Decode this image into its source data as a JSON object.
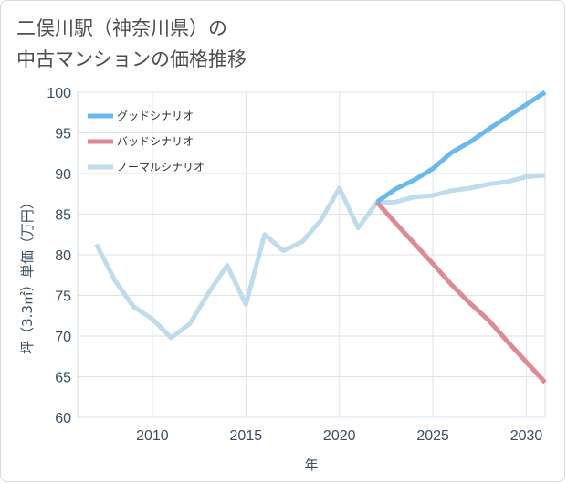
{
  "title_lines": [
    "二俣川駅（神奈川県）の",
    "中古マンションの価格推移"
  ],
  "chart_data": {
    "type": "line",
    "title": "二俣川駅（神奈川県）の中古マンションの価格推移",
    "xlabel": "年",
    "ylabel": "坪（3.3㎡）単価（万円）",
    "xlim": [
      2006,
      2031
    ],
    "ylim": [
      60,
      100
    ],
    "x_ticks": [
      2010,
      2015,
      2020,
      2025,
      2030
    ],
    "y_ticks": [
      60,
      65,
      70,
      75,
      80,
      85,
      90,
      95,
      100
    ],
    "grid": true,
    "legend_position": "top-left",
    "series": [
      {
        "name": "グッドシナリオ",
        "color": "#6bb8ec",
        "x": [
          2022,
          2023,
          2024,
          2025,
          2026,
          2027,
          2028,
          2029,
          2030,
          2031
        ],
        "y": [
          86.5,
          88.1,
          89.2,
          90.6,
          92.6,
          93.9,
          95.5,
          97.0,
          98.5,
          100.0
        ]
      },
      {
        "name": "バッドシナリオ",
        "color": "#de8a96",
        "x": [
          2022,
          2023,
          2024,
          2025,
          2026,
          2027,
          2028,
          2029,
          2030,
          2031
        ],
        "y": [
          86.5,
          83.9,
          81.4,
          78.9,
          76.3,
          74.0,
          71.9,
          69.3,
          66.8,
          64.3
        ]
      },
      {
        "name": "ノーマルシナリオ",
        "color": "#bfdcec",
        "x": [
          2007,
          2008,
          2009,
          2010,
          2011,
          2012,
          2013,
          2014,
          2015,
          2016,
          2017,
          2018,
          2019,
          2020,
          2021,
          2022,
          2023,
          2024,
          2025,
          2026,
          2027,
          2028,
          2029,
          2030,
          2031
        ],
        "y": [
          81.3,
          76.8,
          73.6,
          72.1,
          69.8,
          71.5,
          75.3,
          78.7,
          73.9,
          82.5,
          80.5,
          81.6,
          84.2,
          88.2,
          83.3,
          86.4,
          86.5,
          87.1,
          87.3,
          87.9,
          88.2,
          88.7,
          89.0,
          89.6,
          89.8
        ]
      }
    ]
  }
}
